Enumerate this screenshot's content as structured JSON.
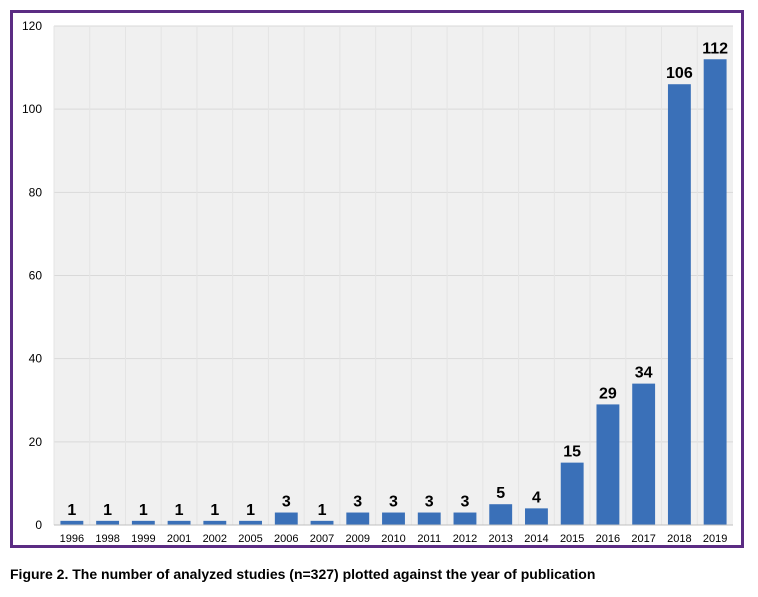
{
  "colors": {
    "bar": "#3a70b8",
    "frame": "#5b2c83",
    "plot_bg": "#f0f0f0"
  },
  "caption": "Figure 2. The number of analyzed studies (n=327) plotted against the year of publication",
  "chart_data": {
    "type": "bar",
    "categories": [
      "1996",
      "1998",
      "1999",
      "2001",
      "2002",
      "2005",
      "2006",
      "2007",
      "2009",
      "2010",
      "2011",
      "2012",
      "2013",
      "2014",
      "2015",
      "2016",
      "2017",
      "2018",
      "2019"
    ],
    "values": [
      1,
      1,
      1,
      1,
      1,
      1,
      3,
      1,
      3,
      3,
      3,
      3,
      5,
      4,
      15,
      29,
      34,
      106,
      112
    ],
    "title": "",
    "xlabel": "",
    "ylabel": "",
    "ylim": [
      0,
      120
    ],
    "yticks": [
      0,
      20,
      40,
      60,
      80,
      100,
      120
    ],
    "grid": true,
    "legend": "none"
  }
}
